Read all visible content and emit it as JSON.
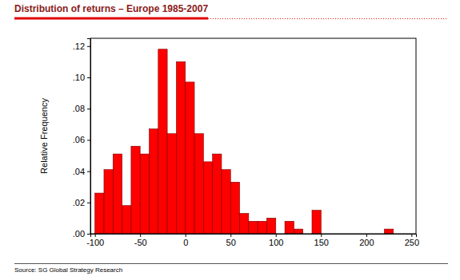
{
  "chart_data": {
    "type": "histogram",
    "title": "Distribution of returns – Europe 1985-2007",
    "y_label": "Relative Frequency",
    "source": "Source: SG Global Strategy Research",
    "bins": [
      -100,
      -90,
      -80,
      -70,
      -60,
      -50,
      -40,
      -30,
      -20,
      -10,
      0,
      10,
      20,
      30,
      40,
      50,
      60,
      70,
      80,
      90,
      100,
      110,
      120,
      130,
      140,
      150,
      160,
      170,
      180,
      190,
      200,
      210,
      220,
      230
    ],
    "values": [
      0.026,
      0.041,
      0.051,
      0.018,
      0.056,
      0.051,
      0.067,
      0.118,
      0.064,
      0.11,
      0.097,
      0.064,
      0.046,
      0.051,
      0.041,
      0.033,
      0.013,
      0.008,
      0.008,
      0.01,
      0,
      0.008,
      0.003,
      0,
      0.015,
      0,
      0,
      0,
      0,
      0,
      0,
      0,
      0.003
    ],
    "color": "#ff0000",
    "xlim": [
      -105,
      255
    ],
    "xticks": [
      -100,
      -50,
      0,
      50,
      100,
      150,
      200,
      250
    ],
    "ylim": [
      0,
      0.125
    ],
    "yticks": [
      {
        "value": 0,
        "label": ".00"
      },
      {
        "value": 0.02,
        "label": ".02"
      },
      {
        "value": 0.04,
        "label": ".04"
      },
      {
        "value": 0.06,
        "label": ".06"
      },
      {
        "value": 0.08,
        "label": ".08"
      },
      {
        "value": 0.1,
        "label": ".10"
      },
      {
        "value": 0.12,
        "label": ".12"
      }
    ],
    "grid": false
  }
}
